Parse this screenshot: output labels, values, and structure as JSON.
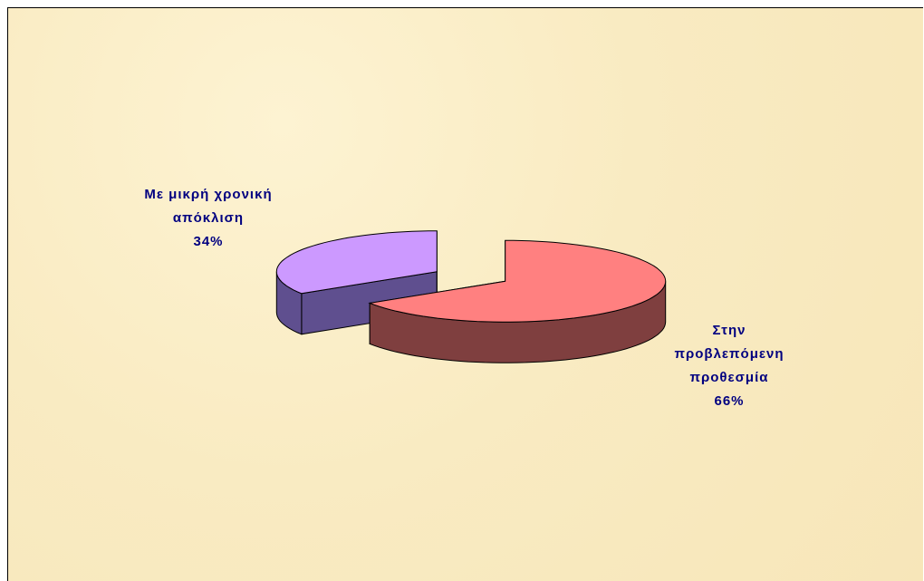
{
  "chart_data": {
    "type": "pie3d",
    "categories": [
      "Στην προβλεπόμενη προθεσμία",
      "Με μικρή χρονική απόκλιση"
    ],
    "values": [
      66,
      34
    ],
    "value_labels": [
      "66%",
      "34%"
    ],
    "colors": [
      "#ff8080",
      "#cc99ff"
    ],
    "side_colors": [
      "#7f3f3f",
      "#5f4f8f"
    ],
    "label_color": "#000080"
  }
}
